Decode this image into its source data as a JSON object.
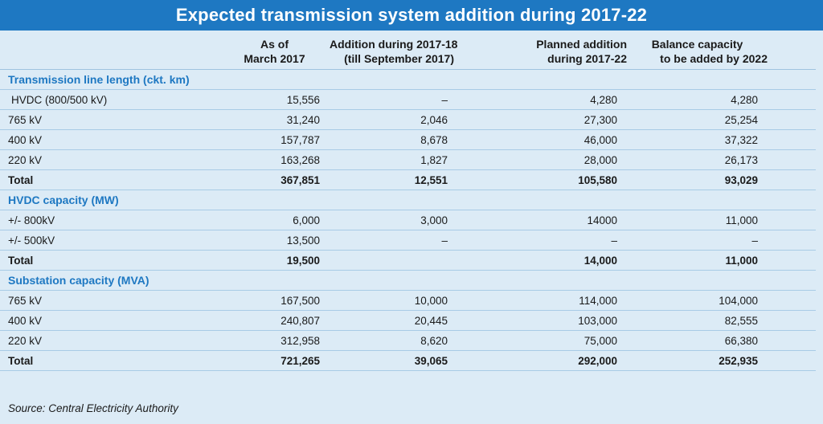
{
  "title": "Expected transmission system addition during 2017-22",
  "headers": {
    "col1_line1": "As of",
    "col1_line2": "March 2017",
    "col2_line1": "Addition during 2017-18",
    "col2_line2": "(till September 2017)",
    "col3_line1": "Planned addition",
    "col3_line2": "during 2017-22",
    "col4_line1": "Balance capacity",
    "col4_line2": "to be added by 2022"
  },
  "sections": [
    {
      "title": "Transmission line length (ckt. km)",
      "rows": [
        {
          "label": "HVDC (800/500 kV)",
          "values": [
            "15,556",
            "–",
            "4,280",
            "4,280"
          ],
          "total": false,
          "indent": true
        },
        {
          "label": "765 kV",
          "values": [
            "31,240",
            "2,046",
            "27,300",
            "25,254"
          ],
          "total": false
        },
        {
          "label": "400 kV",
          "values": [
            "157,787",
            "8,678",
            "46,000",
            "37,322"
          ],
          "total": false
        },
        {
          "label": "220 kV",
          "values": [
            "163,268",
            "1,827",
            "28,000",
            "26,173"
          ],
          "total": false
        },
        {
          "label": "Total",
          "values": [
            "367,851",
            "12,551",
            "105,580",
            "93,029"
          ],
          "total": true
        }
      ]
    },
    {
      "title": "HVDC capacity (MW)",
      "rows": [
        {
          "label": "+/- 800kV",
          "values": [
            "6,000",
            "3,000",
            "14000",
            "11,000"
          ],
          "total": false
        },
        {
          "label": "+/- 500kV",
          "values": [
            "13,500",
            "–",
            "–",
            "–"
          ],
          "total": false
        },
        {
          "label": "Total",
          "values": [
            "19,500",
            "",
            "14,000",
            "11,000"
          ],
          "total": true
        }
      ]
    },
    {
      "title": "Substation capacity (MVA)",
      "rows": [
        {
          "label": "765 kV",
          "values": [
            "167,500",
            "10,000",
            "114,000",
            "104,000"
          ],
          "total": false
        },
        {
          "label": "400 kV",
          "values": [
            "240,807",
            "20,445",
            "103,000",
            "82,555"
          ],
          "total": false
        },
        {
          "label": "220 kV",
          "values": [
            "312,958",
            "8,620",
            "75,000",
            "66,380"
          ],
          "total": false
        },
        {
          "label": "Total",
          "values": [
            "721,265",
            "39,065",
            "292,000",
            "252,935"
          ],
          "total": true
        }
      ]
    }
  ],
  "source": "Source: Central Electricity Authority"
}
